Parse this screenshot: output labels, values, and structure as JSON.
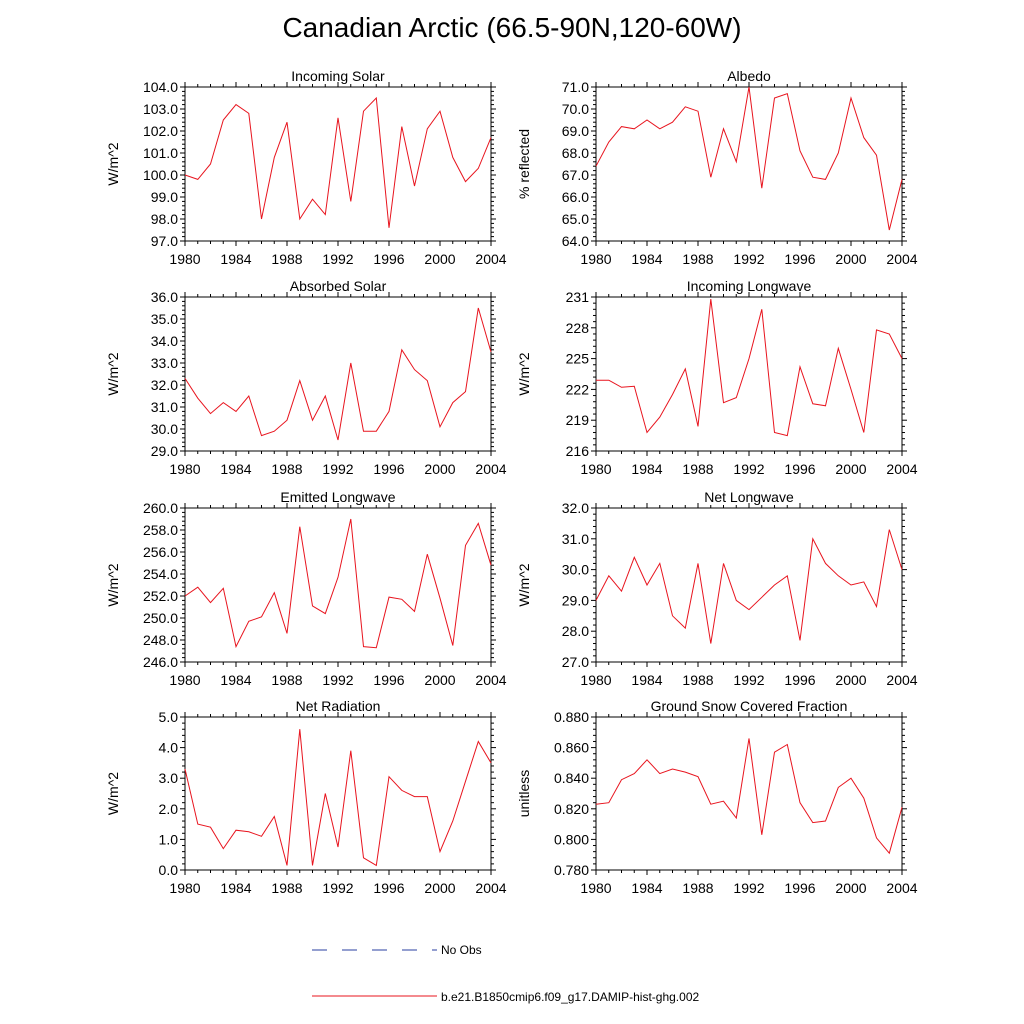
{
  "title": "Canadian Arctic (66.5-90N,120-60W)",
  "legend": {
    "items": [
      {
        "label": "No Obs",
        "style": "dashed",
        "color": "#2a3fa0"
      },
      {
        "label": "b.e21.B1850cmip6.f09_g17.DAMIP-hist-ghg.002",
        "style": "solid",
        "color": "#e8141e"
      }
    ]
  },
  "chart_data": [
    {
      "type": "line",
      "title": "Incoming Solar",
      "ylabel": "W/m^2",
      "xlim": [
        1980,
        2004
      ],
      "ylim": [
        97.0,
        104.0
      ],
      "yticks": [
        97.0,
        98.0,
        99.0,
        100.0,
        101.0,
        102.0,
        103.0,
        104.0
      ],
      "ytick_labels": [
        "97.0",
        "98.0",
        "99.0",
        "100.0",
        "101.0",
        "102.0",
        "103.0",
        "104.0"
      ],
      "xticks": [
        1980,
        1984,
        1988,
        1992,
        1996,
        2000,
        2004
      ],
      "x": [
        1980,
        1981,
        1982,
        1983,
        1984,
        1985,
        1986,
        1987,
        1988,
        1989,
        1990,
        1991,
        1992,
        1993,
        1994,
        1995,
        1996,
        1997,
        1998,
        1999,
        2000,
        2001,
        2002,
        2003,
        2004
      ],
      "series": [
        {
          "values": [
            100.0,
            99.8,
            100.5,
            102.5,
            103.2,
            102.8,
            98.0,
            100.8,
            102.4,
            98.0,
            98.9,
            98.2,
            102.6,
            98.8,
            102.9,
            103.5,
            97.6,
            102.2,
            99.5,
            102.1,
            102.9,
            100.8,
            99.7,
            100.3,
            101.7
          ]
        }
      ]
    },
    {
      "type": "line",
      "title": "Albedo",
      "ylabel": "% reflected",
      "xlim": [
        1980,
        2004
      ],
      "ylim": [
        64.0,
        71.0
      ],
      "yticks": [
        64.0,
        65.0,
        66.0,
        67.0,
        68.0,
        69.0,
        70.0,
        71.0
      ],
      "ytick_labels": [
        "64.0",
        "65.0",
        "66.0",
        "67.0",
        "68.0",
        "69.0",
        "70.0",
        "71.0"
      ],
      "xticks": [
        1980,
        1984,
        1988,
        1992,
        1996,
        2000,
        2004
      ],
      "x": [
        1980,
        1981,
        1982,
        1983,
        1984,
        1985,
        1986,
        1987,
        1988,
        1989,
        1990,
        1991,
        1992,
        1993,
        1994,
        1995,
        1996,
        1997,
        1998,
        1999,
        2000,
        2001,
        2002,
        2003,
        2004
      ],
      "series": [
        {
          "values": [
            67.4,
            68.5,
            69.2,
            69.1,
            69.5,
            69.1,
            69.4,
            70.1,
            69.9,
            66.9,
            69.1,
            67.6,
            71.0,
            66.4,
            70.5,
            70.7,
            68.1,
            66.9,
            66.8,
            68.0,
            70.5,
            68.7,
            67.9,
            64.5,
            66.8
          ]
        }
      ]
    },
    {
      "type": "line",
      "title": "Absorbed Solar",
      "ylabel": "W/m^2",
      "xlim": [
        1980,
        2004
      ],
      "ylim": [
        29.0,
        36.0
      ],
      "yticks": [
        29.0,
        30.0,
        31.0,
        32.0,
        33.0,
        34.0,
        35.0,
        36.0
      ],
      "ytick_labels": [
        "29.0",
        "30.0",
        "31.0",
        "32.0",
        "33.0",
        "34.0",
        "35.0",
        "36.0"
      ],
      "xticks": [
        1980,
        1984,
        1988,
        1992,
        1996,
        2000,
        2004
      ],
      "x": [
        1980,
        1981,
        1982,
        1983,
        1984,
        1985,
        1986,
        1987,
        1988,
        1989,
        1990,
        1991,
        1992,
        1993,
        1994,
        1995,
        1996,
        1997,
        1998,
        1999,
        2000,
        2001,
        2002,
        2003,
        2004
      ],
      "series": [
        {
          "values": [
            32.3,
            31.4,
            30.7,
            31.2,
            30.8,
            31.5,
            29.7,
            29.9,
            30.4,
            32.2,
            30.4,
            31.5,
            29.5,
            33.0,
            29.9,
            29.9,
            30.8,
            33.6,
            32.7,
            32.2,
            30.1,
            31.2,
            31.7,
            35.5,
            33.5
          ]
        }
      ]
    },
    {
      "type": "line",
      "title": "Incoming Longwave",
      "ylabel": "W/m^2",
      "xlim": [
        1980,
        2004
      ],
      "ylim": [
        216,
        231
      ],
      "yticks": [
        216,
        219,
        222,
        225,
        228,
        231
      ],
      "ytick_labels": [
        "216",
        "219",
        "222",
        "225",
        "228",
        "231"
      ],
      "xticks": [
        1980,
        1984,
        1988,
        1992,
        1996,
        2000,
        2004
      ],
      "x": [
        1980,
        1981,
        1982,
        1983,
        1984,
        1985,
        1986,
        1987,
        1988,
        1989,
        1990,
        1991,
        1992,
        1993,
        1994,
        1995,
        1996,
        1997,
        1998,
        1999,
        2000,
        2001,
        2002,
        2003,
        2004
      ],
      "series": [
        {
          "values": [
            222.9,
            222.9,
            222.2,
            222.3,
            217.8,
            219.3,
            221.5,
            224.0,
            218.4,
            230.8,
            220.7,
            221.2,
            225.0,
            229.8,
            217.8,
            217.5,
            224.2,
            220.6,
            220.4,
            226.0,
            222.0,
            217.8,
            227.8,
            227.4,
            225.0
          ]
        }
      ]
    },
    {
      "type": "line",
      "title": "Emitted Longwave",
      "ylabel": "W/m^2",
      "xlim": [
        1980,
        2004
      ],
      "ylim": [
        246.0,
        260.0
      ],
      "yticks": [
        246.0,
        248.0,
        250.0,
        252.0,
        254.0,
        256.0,
        258.0,
        260.0
      ],
      "ytick_labels": [
        "246.0",
        "248.0",
        "250.0",
        "252.0",
        "254.0",
        "256.0",
        "258.0",
        "260.0"
      ],
      "xticks": [
        1980,
        1984,
        1988,
        1992,
        1996,
        2000,
        2004
      ],
      "x": [
        1980,
        1981,
        1982,
        1983,
        1984,
        1985,
        1986,
        1987,
        1988,
        1989,
        1990,
        1991,
        1992,
        1993,
        1994,
        1995,
        1996,
        1997,
        1998,
        1999,
        2000,
        2001,
        2002,
        2003,
        2004
      ],
      "series": [
        {
          "values": [
            252.0,
            252.8,
            251.4,
            252.7,
            247.4,
            249.7,
            250.1,
            252.3,
            248.6,
            258.3,
            251.1,
            250.4,
            253.7,
            259.0,
            247.4,
            247.3,
            251.9,
            251.7,
            250.6,
            255.8,
            251.8,
            247.5,
            256.6,
            258.6,
            254.8
          ]
        }
      ]
    },
    {
      "type": "line",
      "title": "Net Longwave",
      "ylabel": "W/m^2",
      "xlim": [
        1980,
        2004
      ],
      "ylim": [
        27.0,
        32.0
      ],
      "yticks": [
        27.0,
        28.0,
        29.0,
        30.0,
        31.0,
        32.0
      ],
      "ytick_labels": [
        "27.0",
        "28.0",
        "29.0",
        "30.0",
        "31.0",
        "32.0"
      ],
      "xticks": [
        1980,
        1984,
        1988,
        1992,
        1996,
        2000,
        2004
      ],
      "x": [
        1980,
        1981,
        1982,
        1983,
        1984,
        1985,
        1986,
        1987,
        1988,
        1989,
        1990,
        1991,
        1992,
        1993,
        1994,
        1995,
        1996,
        1997,
        1998,
        1999,
        2000,
        2001,
        2002,
        2003,
        2004
      ],
      "series": [
        {
          "values": [
            29.0,
            29.8,
            29.3,
            30.4,
            29.5,
            30.2,
            28.5,
            28.1,
            30.2,
            27.6,
            30.2,
            29.0,
            28.7,
            29.1,
            29.5,
            29.8,
            27.7,
            31.0,
            30.2,
            29.8,
            29.5,
            29.6,
            28.8,
            31.3,
            30.0
          ]
        }
      ]
    },
    {
      "type": "line",
      "title": "Net Radiation",
      "ylabel": "W/m^2",
      "xlim": [
        1980,
        2004
      ],
      "ylim": [
        0.0,
        5.0
      ],
      "yticks": [
        0.0,
        1.0,
        2.0,
        3.0,
        4.0,
        5.0
      ],
      "ytick_labels": [
        "0.0",
        "1.0",
        "2.0",
        "3.0",
        "4.0",
        "5.0"
      ],
      "xticks": [
        1980,
        1984,
        1988,
        1992,
        1996,
        2000,
        2004
      ],
      "x": [
        1980,
        1981,
        1982,
        1983,
        1984,
        1985,
        1986,
        1987,
        1988,
        1989,
        1990,
        1991,
        1992,
        1993,
        1994,
        1995,
        1996,
        1997,
        1998,
        1999,
        2000,
        2001,
        2002,
        2003,
        2004
      ],
      "series": [
        {
          "values": [
            3.3,
            1.5,
            1.4,
            0.7,
            1.3,
            1.25,
            1.1,
            1.75,
            0.15,
            4.6,
            0.15,
            2.5,
            0.75,
            3.9,
            0.4,
            0.15,
            3.05,
            2.6,
            2.4,
            2.4,
            0.6,
            1.6,
            2.9,
            4.2,
            3.5
          ]
        }
      ]
    },
    {
      "type": "line",
      "title": "Ground Snow Covered Fraction",
      "ylabel": "unitless",
      "xlim": [
        1980,
        2004
      ],
      "ylim": [
        0.78,
        0.88
      ],
      "yticks": [
        0.78,
        0.8,
        0.82,
        0.84,
        0.86,
        0.88
      ],
      "ytick_labels": [
        "0.780",
        "0.800",
        "0.820",
        "0.840",
        "0.860",
        "0.880"
      ],
      "xticks": [
        1980,
        1984,
        1988,
        1992,
        1996,
        2000,
        2004
      ],
      "x": [
        1980,
        1981,
        1982,
        1983,
        1984,
        1985,
        1986,
        1987,
        1988,
        1989,
        1990,
        1991,
        1992,
        1993,
        1994,
        1995,
        1996,
        1997,
        1998,
        1999,
        2000,
        2001,
        2002,
        2003,
        2004
      ],
      "series": [
        {
          "values": [
            0.823,
            0.824,
            0.839,
            0.843,
            0.852,
            0.843,
            0.846,
            0.844,
            0.841,
            0.823,
            0.825,
            0.814,
            0.866,
            0.803,
            0.857,
            0.862,
            0.824,
            0.811,
            0.812,
            0.834,
            0.84,
            0.827,
            0.801,
            0.791,
            0.821
          ]
        }
      ]
    }
  ]
}
